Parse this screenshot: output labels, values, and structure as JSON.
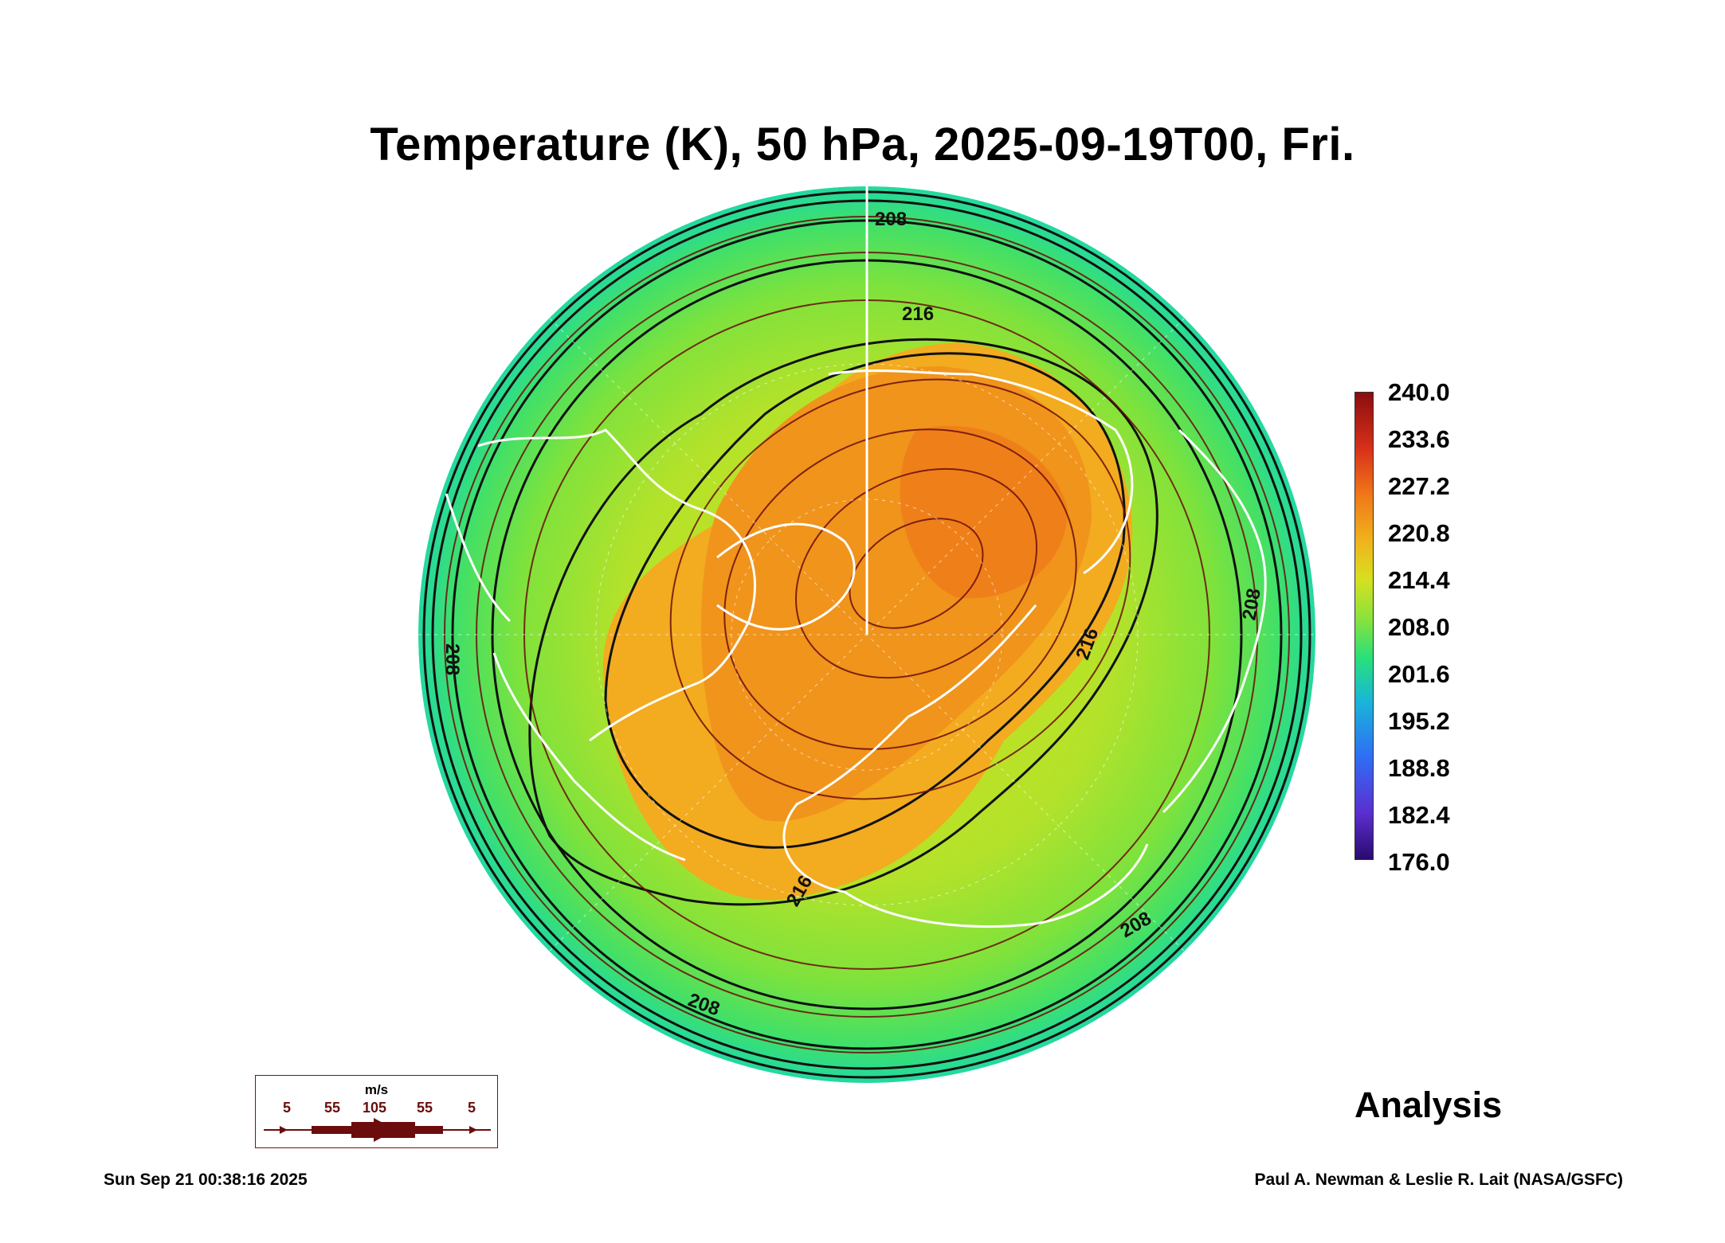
{
  "title": "Temperature (K), 50 hPa, 2025-09-19T00, Fri.",
  "colorbar": {
    "labels": [
      "240.0",
      "233.6",
      "227.2",
      "220.8",
      "214.4",
      "208.0",
      "201.6",
      "195.2",
      "188.8",
      "182.4",
      "176.0"
    ],
    "min": 176.0,
    "max": 240.0,
    "colors": [
      "#2a0a6e",
      "#5b2fd1",
      "#2f6ef5",
      "#19b6d8",
      "#27e07a",
      "#8fe23a",
      "#d6e020",
      "#f0b41c",
      "#f07818",
      "#d8301a",
      "#8a0d0d"
    ]
  },
  "contour_labels": [
    "208",
    "216",
    "208",
    "216",
    "208",
    "216",
    "208",
    "208"
  ],
  "wind_legend": {
    "unit": "m/s",
    "values": [
      "5",
      "55",
      "105",
      "55",
      "5"
    ]
  },
  "analysis_label": "Analysis",
  "timestamp": "Sun Sep 21 00:38:16 2025",
  "credit": "Paul A. Newman & Leslie R. Lait (NASA/GSFC)",
  "colors": {
    "stream": "#6b0d0d",
    "contour": "#111111",
    "coast": "#ffffff",
    "cold_ring": "#2fe07a",
    "mid": "#a4e22a",
    "warm": "#f0a020",
    "hot": "#ef7a18"
  }
}
